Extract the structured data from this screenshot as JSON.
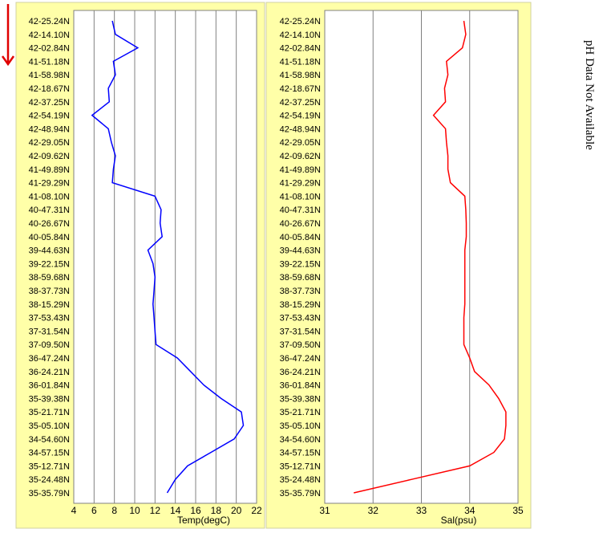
{
  "colors": {
    "panel_bg": "#ffffa8",
    "plot_bg": "#ffffff",
    "grid": "#808080",
    "temp_line": "#0000ff",
    "sal_line": "#ff0000",
    "arrow": "#e00000"
  },
  "direction_arrow": {
    "icon": "down-arrow-icon",
    "meaning": "direction of travel"
  },
  "side_note": "pH Data Not Available",
  "chart_data": [
    {
      "type": "line",
      "orientation": "vertical-profile",
      "xlabel": "Temp(degC)",
      "xlim": [
        4,
        22
      ],
      "xticks": [
        4,
        6,
        8,
        10,
        12,
        14,
        16,
        18,
        20,
        22
      ],
      "grid": true,
      "legend": "none",
      "y_categories": [
        "42-25.24N",
        "42-14.10N",
        "42-02.84N",
        "41-51.18N",
        "41-58.98N",
        "42-18.67N",
        "42-37.25N",
        "42-54.19N",
        "42-48.94N",
        "42-29.05N",
        "42-09.62N",
        "41-49.89N",
        "41-29.29N",
        "41-08.10N",
        "40-47.31N",
        "40-26.67N",
        "40-05.84N",
        "39-44.63N",
        "39-22.15N",
        "38-59.68N",
        "38-37.73N",
        "38-15.29N",
        "37-53.43N",
        "37-31.54N",
        "37-09.50N",
        "36-47.24N",
        "36-24.21N",
        "36-01.84N",
        "35-39.38N",
        "35-21.71N",
        "35-05.10N",
        "34-54.60N",
        "34-57.15N",
        "35-12.71N",
        "35-24.48N",
        "35-35.79N"
      ],
      "series": [
        {
          "values": [
            7.8,
            8.1,
            10.3,
            7.9,
            8.1,
            7.4,
            7.5,
            5.8,
            7.4,
            7.7,
            8.1,
            7.9,
            7.8,
            12.0,
            12.6,
            12.5,
            12.7,
            11.3,
            11.8,
            12.0,
            11.9,
            11.8,
            11.9,
            12.0,
            12.1,
            14.2,
            15.5,
            16.8,
            18.5,
            20.5,
            20.7,
            19.8,
            17.5,
            15.2,
            14.0,
            13.2
          ]
        }
      ]
    },
    {
      "type": "line",
      "orientation": "vertical-profile",
      "xlabel": "Sal(psu)",
      "xlim": [
        31,
        35
      ],
      "xticks": [
        31,
        32,
        33,
        34,
        35
      ],
      "grid": true,
      "legend": "none",
      "y_categories": [
        "42-25.24N",
        "42-14.10N",
        "42-02.84N",
        "41-51.18N",
        "41-58.98N",
        "42-18.67N",
        "42-37.25N",
        "42-54.19N",
        "42-48.94N",
        "42-29.05N",
        "42-09.62N",
        "41-49.89N",
        "41-29.29N",
        "41-08.10N",
        "40-47.31N",
        "40-26.67N",
        "40-05.84N",
        "39-44.63N",
        "39-22.15N",
        "38-59.68N",
        "38-37.73N",
        "38-15.29N",
        "37-53.43N",
        "37-31.54N",
        "37-09.50N",
        "36-47.24N",
        "36-24.21N",
        "36-01.84N",
        "35-39.38N",
        "35-21.71N",
        "35-05.10N",
        "34-54.60N",
        "34-57.15N",
        "35-12.71N",
        "35-24.48N",
        "35-35.79N"
      ],
      "series": [
        {
          "values": [
            33.88,
            33.92,
            33.85,
            33.52,
            33.55,
            33.48,
            33.5,
            33.25,
            33.5,
            33.52,
            33.55,
            33.55,
            33.6,
            33.9,
            33.92,
            33.93,
            33.93,
            33.9,
            33.9,
            33.9,
            33.9,
            33.9,
            33.88,
            33.88,
            33.88,
            34.0,
            34.1,
            34.4,
            34.6,
            34.75,
            34.75,
            34.72,
            34.5,
            34.0,
            32.8,
            31.6
          ]
        }
      ]
    }
  ]
}
